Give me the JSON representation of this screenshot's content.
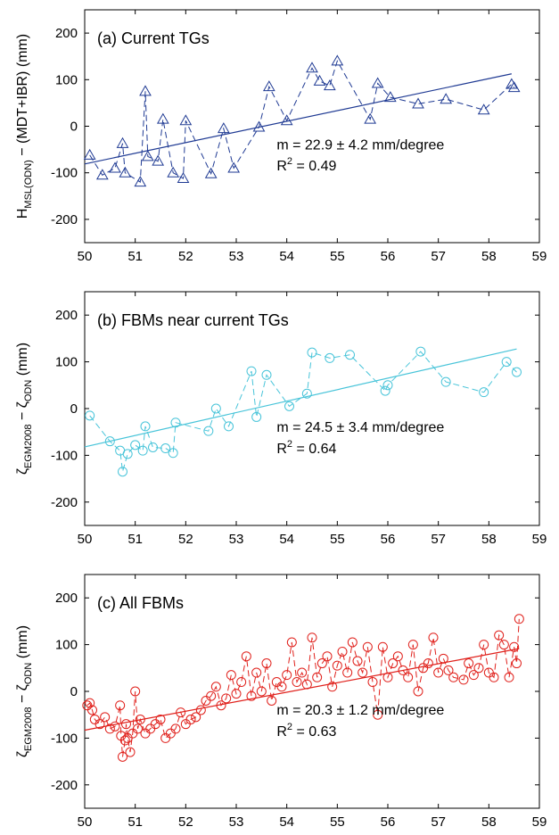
{
  "chart_data": [
    {
      "type": "scatter",
      "title": "(a) Current TGs",
      "ylabel_main": "H",
      "ylabel_sub": "MSL(ODN)",
      "ylabel_rest": " − (MDT+IBR) (mm)",
      "xlim": [
        50,
        59
      ],
      "ylim": [
        -250,
        250
      ],
      "x_ticks": [
        50,
        51,
        52,
        53,
        54,
        55,
        56,
        57,
        58,
        59
      ],
      "y_ticks": [
        -200,
        -100,
        0,
        100,
        200
      ],
      "color": "#1f3a93",
      "marker": "triangle",
      "connected": "dashed",
      "fit": {
        "slope": 22.9,
        "intercept": -81,
        "x": [
          50,
          58.45
        ]
      },
      "annotation_slope": "m = 22.9 ± 4.2 mm/degree",
      "annotation_r2_base": "R",
      "annotation_r2_exp": "2",
      "annotation_r2_val": " = 0.49",
      "x": [
        50.1,
        50.35,
        50.6,
        50.75,
        50.8,
        51.1,
        51.2,
        51.25,
        51.45,
        51.55,
        51.75,
        51.95,
        52.0,
        52.5,
        52.75,
        52.95,
        53.45,
        53.65,
        54.0,
        54.5,
        54.65,
        54.85,
        55.0,
        55.65,
        55.8,
        56.05,
        56.6,
        57.15,
        57.9,
        58.45,
        58.5
      ],
      "y": [
        -62,
        -105,
        -90,
        -37,
        -100,
        -120,
        75,
        -65,
        -75,
        15,
        -100,
        -112,
        12,
        -102,
        -5,
        -90,
        -2,
        85,
        12,
        125,
        97,
        87,
        140,
        15,
        92,
        62,
        48,
        58,
        35,
        90,
        83
      ]
    },
    {
      "type": "scatter",
      "title": "(b) FBMs near current TGs",
      "ylabel_main": "ζ",
      "ylabel_sub": "EGM2008",
      "ylabel_rest": " − ζ",
      "ylabel_sub2": "ODN",
      "ylabel_tail": " (mm)",
      "xlim": [
        50,
        59
      ],
      "ylim": [
        -250,
        250
      ],
      "x_ticks": [
        50,
        51,
        52,
        53,
        54,
        55,
        56,
        57,
        58,
        59
      ],
      "y_ticks": [
        -200,
        -100,
        0,
        100,
        200
      ],
      "color": "#48c4d9",
      "marker": "circle",
      "connected": "dashed",
      "fit": {
        "slope": 24.5,
        "intercept": -82,
        "x": [
          50,
          58.55
        ]
      },
      "annotation_slope": "m = 24.5 ± 3.4 mm/degree",
      "annotation_r2_base": "R",
      "annotation_r2_exp": "2",
      "annotation_r2_val": " = 0.64",
      "x": [
        50.1,
        50.5,
        50.7,
        50.75,
        50.85,
        51.0,
        51.15,
        51.2,
        51.35,
        51.6,
        51.75,
        51.8,
        52.45,
        52.6,
        52.85,
        53.3,
        53.4,
        53.6,
        54.05,
        54.4,
        54.5,
        54.85,
        55.25,
        55.95,
        56.0,
        56.65,
        57.15,
        57.9,
        58.35,
        58.55
      ],
      "y": [
        -15,
        -70,
        -90,
        -135,
        -97,
        -78,
        -90,
        -38,
        -83,
        -85,
        -95,
        -30,
        -48,
        0,
        -38,
        80,
        -18,
        72,
        5,
        32,
        120,
        108,
        115,
        38,
        50,
        122,
        57,
        35,
        100,
        78
      ]
    },
    {
      "type": "scatter",
      "title": "(c) All FBMs",
      "ylabel_main": "ζ",
      "ylabel_sub": "EGM2008",
      "ylabel_rest": " − ζ",
      "ylabel_sub2": "ODN",
      "ylabel_tail": " (mm)",
      "xlim": [
        50,
        59
      ],
      "ylim": [
        -250,
        250
      ],
      "x_ticks": [
        50,
        51,
        52,
        53,
        54,
        55,
        56,
        57,
        58,
        59
      ],
      "y_ticks": [
        -200,
        -100,
        0,
        100,
        200
      ],
      "color": "#e0201b",
      "marker": "circle",
      "connected": "dashed",
      "fit": {
        "slope": 20.3,
        "intercept": -83,
        "x": [
          50,
          58.6
        ]
      },
      "annotation_slope": "m = 20.3 ± 1.2 mm/degree",
      "annotation_r2_base": "R",
      "annotation_r2_exp": "2",
      "annotation_r2_val": " = 0.63",
      "x": [
        50.05,
        50.1,
        50.15,
        50.2,
        50.3,
        50.4,
        50.5,
        50.6,
        50.7,
        50.72,
        50.75,
        50.8,
        50.82,
        50.85,
        50.9,
        50.95,
        51.0,
        51.05,
        51.1,
        51.2,
        51.3,
        51.4,
        51.5,
        51.6,
        51.7,
        51.8,
        51.9,
        52.0,
        52.1,
        52.2,
        52.3,
        52.4,
        52.5,
        52.6,
        52.7,
        52.8,
        52.9,
        53.0,
        53.1,
        53.2,
        53.3,
        53.4,
        53.5,
        53.6,
        53.7,
        53.8,
        53.9,
        54.0,
        54.1,
        54.2,
        54.3,
        54.4,
        54.5,
        54.6,
        54.7,
        54.8,
        54.9,
        55.0,
        55.1,
        55.2,
        55.3,
        55.4,
        55.5,
        55.6,
        55.7,
        55.8,
        55.9,
        56.0,
        56.1,
        56.2,
        56.3,
        56.4,
        56.5,
        56.6,
        56.7,
        56.8,
        56.9,
        57.0,
        57.1,
        57.2,
        57.3,
        57.5,
        57.6,
        57.7,
        57.8,
        57.9,
        58.0,
        58.1,
        58.2,
        58.3,
        58.4,
        58.5,
        58.55,
        58.6
      ],
      "y": [
        -30,
        -25,
        -40,
        -60,
        -70,
        -55,
        -80,
        -75,
        -30,
        -95,
        -140,
        -105,
        -70,
        -100,
        -130,
        -90,
        0,
        -80,
        -60,
        -90,
        -80,
        -70,
        -60,
        -100,
        -90,
        -80,
        -45,
        -70,
        -60,
        -55,
        -40,
        -20,
        -10,
        10,
        -30,
        -15,
        35,
        -5,
        20,
        75,
        -10,
        40,
        0,
        60,
        -20,
        20,
        10,
        35,
        105,
        20,
        40,
        15,
        115,
        30,
        60,
        75,
        10,
        55,
        85,
        40,
        105,
        65,
        40,
        95,
        20,
        -50,
        95,
        30,
        60,
        75,
        45,
        30,
        100,
        0,
        50,
        60,
        115,
        40,
        70,
        45,
        30,
        25,
        60,
        35,
        50,
        100,
        40,
        30,
        120,
        100,
        30,
        95,
        60,
        155
      ]
    }
  ]
}
